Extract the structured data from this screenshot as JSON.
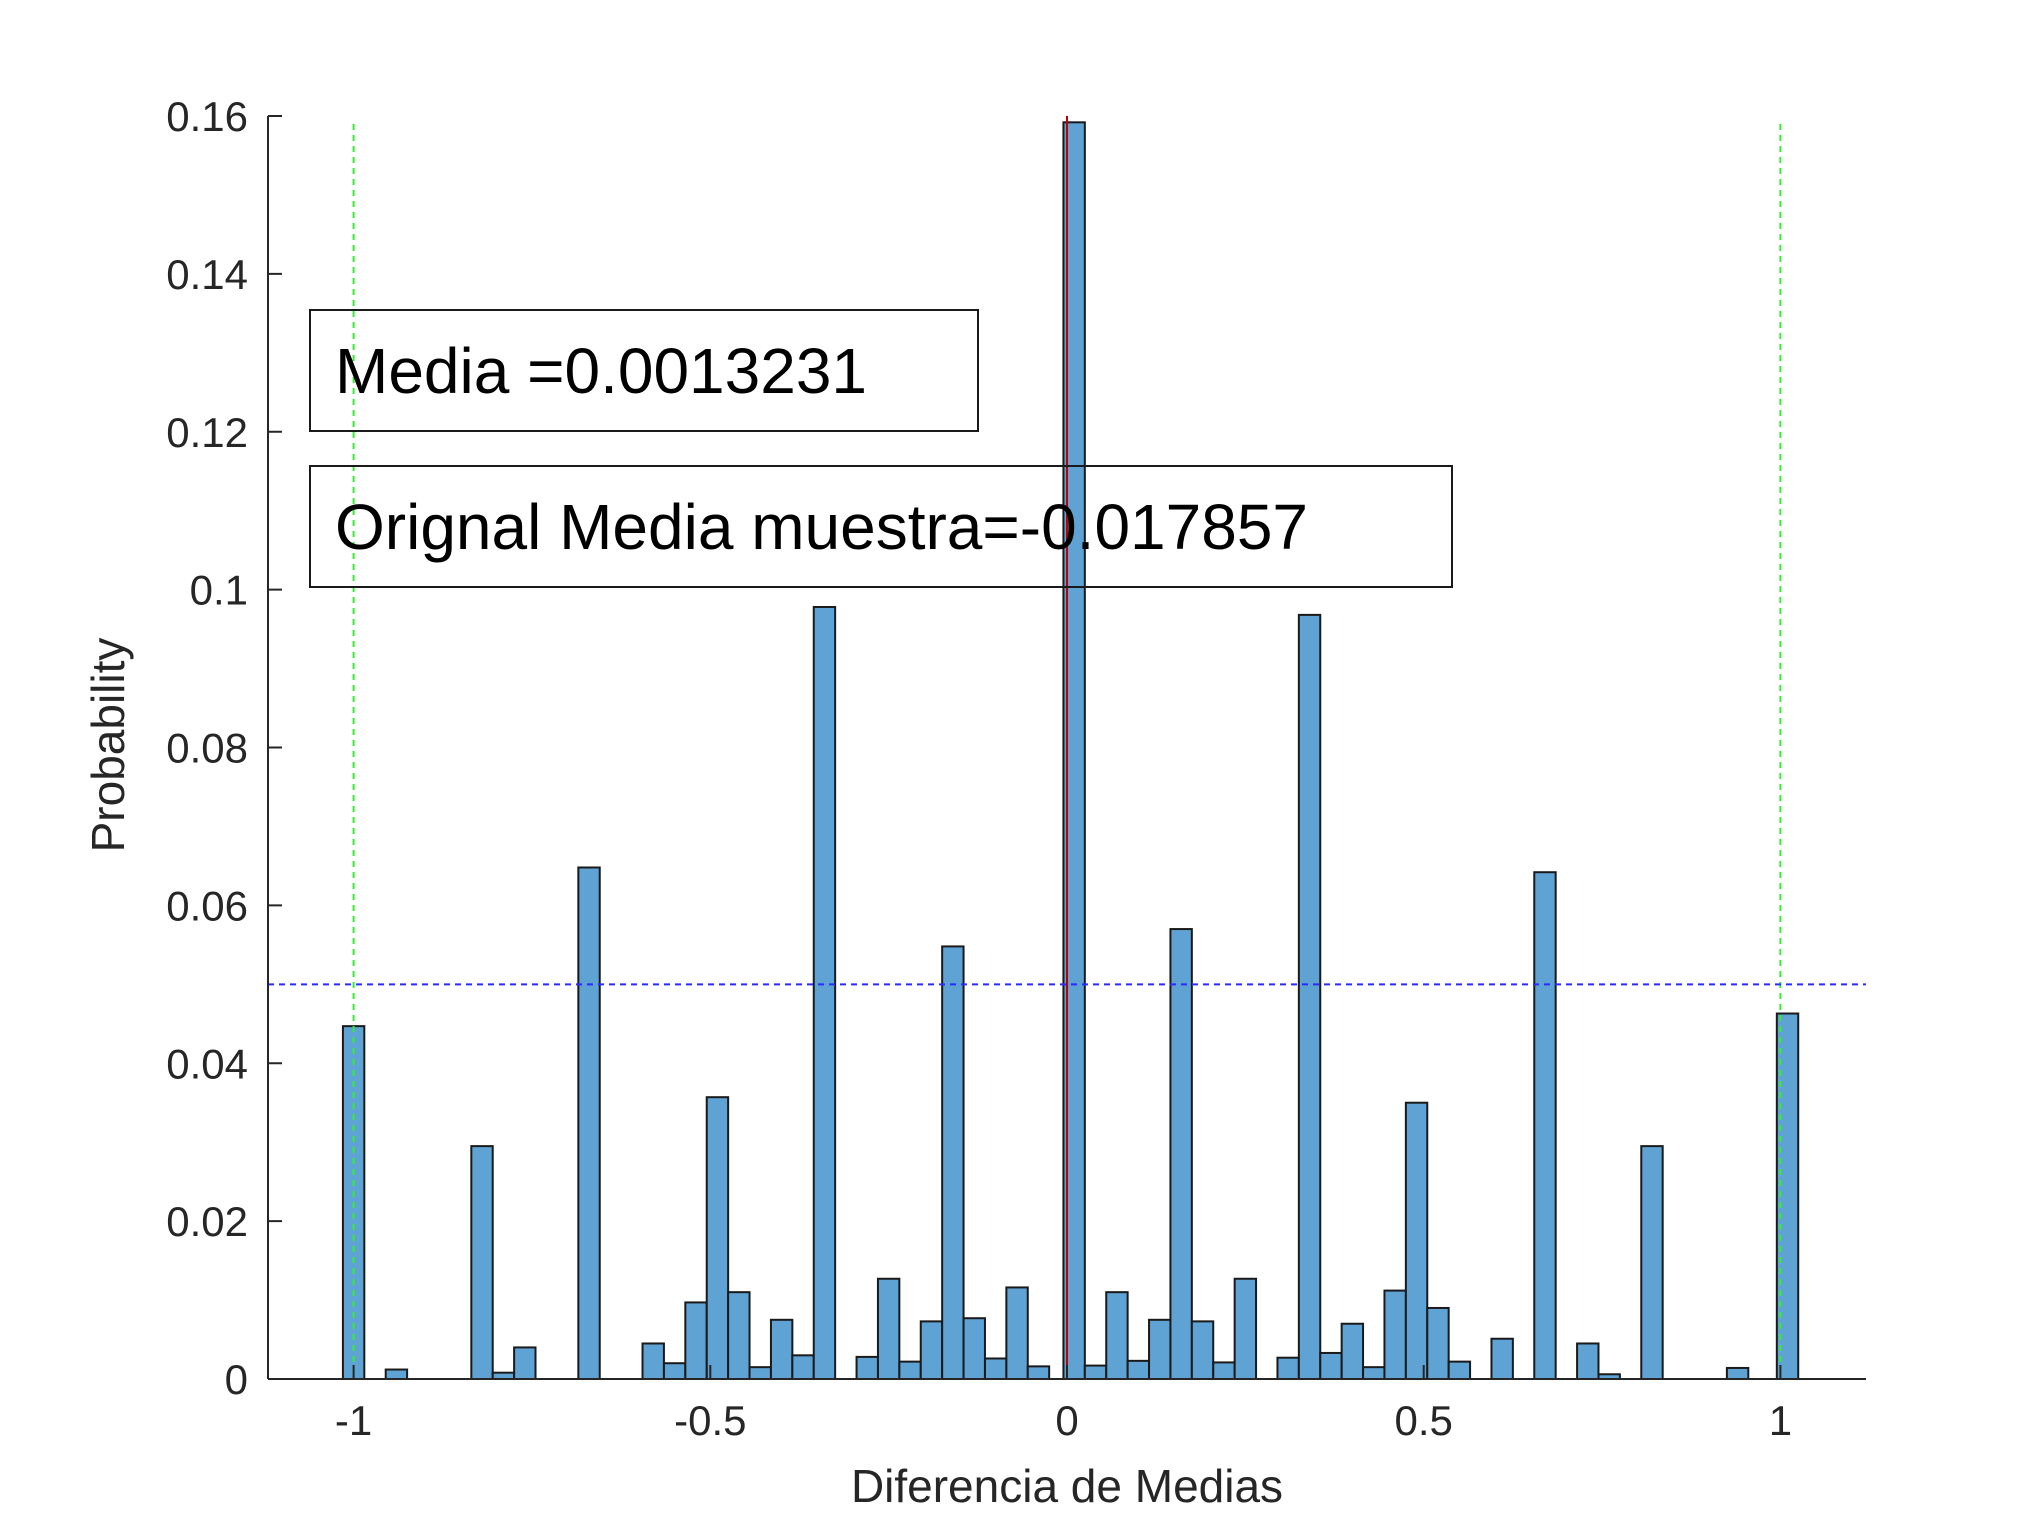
{
  "chart_data": {
    "type": "bar",
    "xlabel": "Diferencia de Medias",
    "ylabel": "Probability",
    "xlim": [
      -1.12,
      1.12
    ],
    "ylim": [
      0,
      0.16
    ],
    "xticks": [
      -1,
      -0.5,
      0,
      0.5,
      1
    ],
    "xtick_labels": [
      "-1",
      "-0.5",
      "0",
      "0.5",
      "1"
    ],
    "yticks": [
      0,
      0.02,
      0.04,
      0.06,
      0.08,
      0.1,
      0.12,
      0.14,
      0.16
    ],
    "ytick_labels": [
      "0",
      "0.02",
      "0.04",
      "0.06",
      "0.08",
      "0.1",
      "0.12",
      "0.14",
      "0.16"
    ],
    "grid": false,
    "bin_width": 0.03,
    "bar_color": "#5fa2d4",
    "bar_edge_color": "#1a1a1a",
    "bins": [
      {
        "x": -1.0,
        "value": 0.0447
      },
      {
        "x": -0.94,
        "value": 0.0012
      },
      {
        "x": -0.82,
        "value": 0.0295
      },
      {
        "x": -0.79,
        "value": 0.0008
      },
      {
        "x": -0.76,
        "value": 0.004
      },
      {
        "x": -0.67,
        "value": 0.0648
      },
      {
        "x": -0.58,
        "value": 0.0045
      },
      {
        "x": -0.55,
        "value": 0.002
      },
      {
        "x": -0.52,
        "value": 0.0097
      },
      {
        "x": -0.49,
        "value": 0.0357
      },
      {
        "x": -0.46,
        "value": 0.011
      },
      {
        "x": -0.43,
        "value": 0.0015
      },
      {
        "x": -0.4,
        "value": 0.0075
      },
      {
        "x": -0.37,
        "value": 0.003
      },
      {
        "x": -0.34,
        "value": 0.0978
      },
      {
        "x": -0.28,
        "value": 0.0028
      },
      {
        "x": -0.25,
        "value": 0.0127
      },
      {
        "x": -0.22,
        "value": 0.0022
      },
      {
        "x": -0.19,
        "value": 0.0073
      },
      {
        "x": -0.16,
        "value": 0.0548
      },
      {
        "x": -0.13,
        "value": 0.0077
      },
      {
        "x": -0.1,
        "value": 0.0026
      },
      {
        "x": -0.07,
        "value": 0.0116
      },
      {
        "x": -0.04,
        "value": 0.0016
      },
      {
        "x": 0.01,
        "value": 0.1592
      },
      {
        "x": 0.04,
        "value": 0.0017
      },
      {
        "x": 0.07,
        "value": 0.011
      },
      {
        "x": 0.1,
        "value": 0.0023
      },
      {
        "x": 0.13,
        "value": 0.0075
      },
      {
        "x": 0.16,
        "value": 0.057
      },
      {
        "x": 0.19,
        "value": 0.0073
      },
      {
        "x": 0.22,
        "value": 0.0021
      },
      {
        "x": 0.25,
        "value": 0.0127
      },
      {
        "x": 0.31,
        "value": 0.0027
      },
      {
        "x": 0.34,
        "value": 0.0968
      },
      {
        "x": 0.37,
        "value": 0.0033
      },
      {
        "x": 0.4,
        "value": 0.007
      },
      {
        "x": 0.43,
        "value": 0.0015
      },
      {
        "x": 0.46,
        "value": 0.0112
      },
      {
        "x": 0.49,
        "value": 0.035
      },
      {
        "x": 0.52,
        "value": 0.009
      },
      {
        "x": 0.55,
        "value": 0.0022
      },
      {
        "x": 0.61,
        "value": 0.0051
      },
      {
        "x": 0.67,
        "value": 0.0642
      },
      {
        "x": 0.73,
        "value": 0.0045
      },
      {
        "x": 0.76,
        "value": 0.0006
      },
      {
        "x": 0.82,
        "value": 0.0295
      },
      {
        "x": 0.94,
        "value": 0.0014
      },
      {
        "x": 1.01,
        "value": 0.0463
      }
    ],
    "reference_lines": [
      {
        "orientation": "vertical",
        "value": 0.0,
        "color": "#c00000",
        "style": "solid"
      },
      {
        "orientation": "vertical",
        "value": -1.0,
        "color": "#33ee33",
        "style": "dashed"
      },
      {
        "orientation": "vertical",
        "value": 1.0,
        "color": "#33ee33",
        "style": "dashed"
      },
      {
        "orientation": "horizontal",
        "value": 0.05,
        "color": "#2b2bff",
        "style": "dashed"
      }
    ],
    "annotations": [
      {
        "text": "Media =0.0013231"
      },
      {
        "text": "Orignal Media muestra=-0.017857"
      }
    ]
  }
}
